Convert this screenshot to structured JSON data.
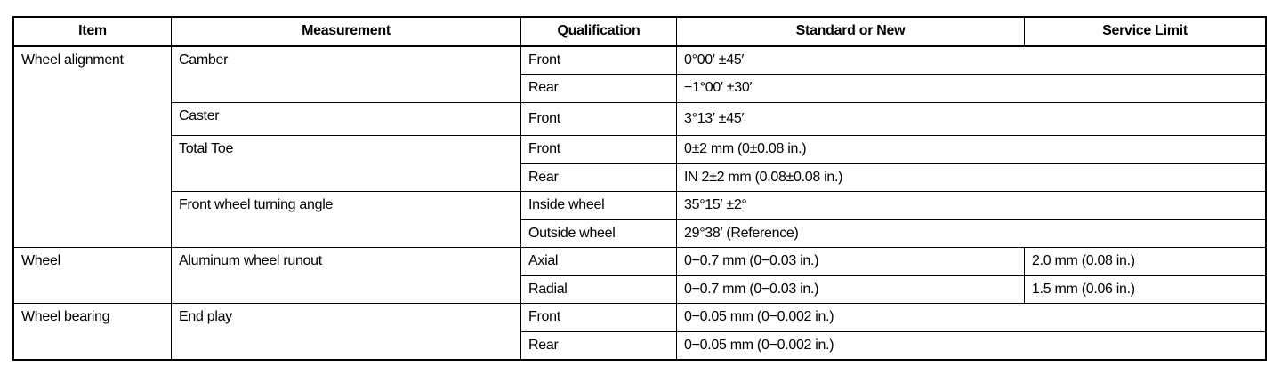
{
  "headers": [
    "Item",
    "Measurement",
    "Qualification",
    "Standard or New",
    "Service Limit"
  ],
  "rows": {
    "wa": {
      "item": "Wheel alignment",
      "camber": {
        "label": "Camber",
        "front": "Front",
        "front_std": "0°00′ ±45′",
        "rear": "Rear",
        "rear_std": "−1°00′ ±30′"
      },
      "caster": {
        "label": "Caster",
        "front": "Front",
        "front_std": "3°13′ ±45′"
      },
      "toe": {
        "label": "Total Toe",
        "front": "Front",
        "front_std": "0±2 mm (0±0.08 in.)",
        "rear": "Rear",
        "rear_std": "IN 2±2 mm (0.08±0.08 in.)"
      },
      "turn": {
        "label": "Front wheel turning angle",
        "inside": "Inside wheel",
        "inside_std": "35°15′ ±2°",
        "outside": "Outside wheel",
        "outside_std": "29°38′ (Reference)"
      }
    },
    "wheel": {
      "item": "Wheel",
      "label": "Aluminum wheel runout",
      "axial": "Axial",
      "axial_std": "0−0.7 mm (0−0.03 in.)",
      "axial_limit": "2.0 mm (0.08 in.)",
      "radial": "Radial",
      "radial_std": "0−0.7 mm (0−0.03 in.)",
      "radial_limit": "1.5 mm (0.06 in.)"
    },
    "bearing": {
      "item": "Wheel bearing",
      "label": "End play",
      "front": "Front",
      "front_std": "0−0.05 mm (0−0.002 in.)",
      "rear": "Rear",
      "rear_std": "0−0.05 mm (0−0.002 in.)"
    }
  }
}
